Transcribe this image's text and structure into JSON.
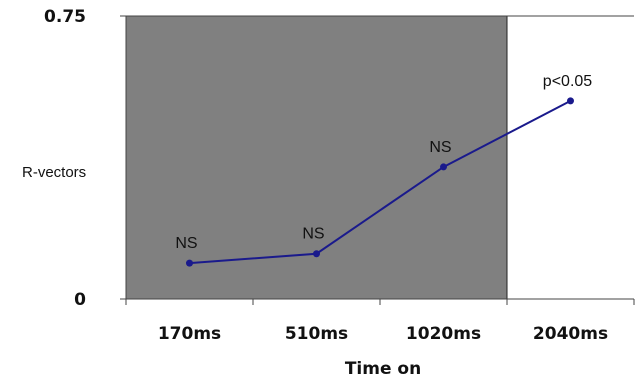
{
  "chart_data": {
    "type": "line",
    "xlabel": "Time on",
    "ylabel": "R-vectors",
    "categories": [
      "170ms",
      "510ms",
      "1020ms",
      "2040ms"
    ],
    "ylim": [
      0,
      0.75
    ],
    "yticks": [
      "0",
      "0.75"
    ],
    "values": [
      0.095,
      0.12,
      0.35,
      0.525
    ],
    "annotations": [
      "NS",
      "NS",
      "NS",
      "p<0.05"
    ],
    "shaded_region_categories": [
      "170ms",
      "510ms",
      "1020ms"
    ],
    "colors": {
      "line": "#1a1a8c",
      "shade": "#808080"
    },
    "grid": false
  }
}
